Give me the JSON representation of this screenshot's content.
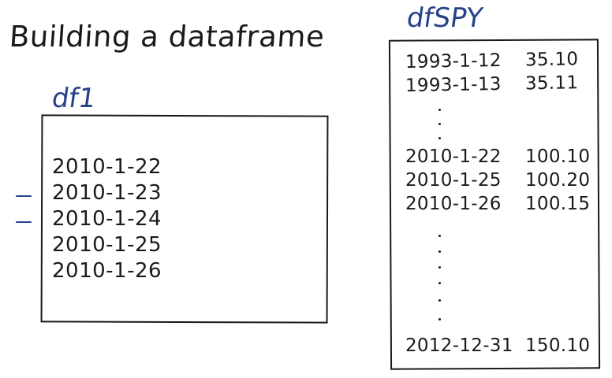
{
  "title": "Building a dataframe",
  "df1": {
    "label": "df1",
    "dates": [
      "2010-1-22",
      "2010-1-23",
      "2010-1-24",
      "2010-1-25",
      "2010-1-26"
    ]
  },
  "dfspy": {
    "label": "dfSPY",
    "rows": [
      {
        "date": "1993-1-12",
        "value": "35.10"
      },
      {
        "date": "1993-1-13",
        "value": "35.11"
      },
      {
        "date": "2010-1-22",
        "value": "100.10"
      },
      {
        "date": "2010-1-25",
        "value": "100.20"
      },
      {
        "date": "2010-1-26",
        "value": "100.15"
      },
      {
        "date": "2012-12-31",
        "value": "150.10"
      }
    ]
  },
  "colors": {
    "ink": "#1a1a1a",
    "label_blue": "#28428a"
  }
}
